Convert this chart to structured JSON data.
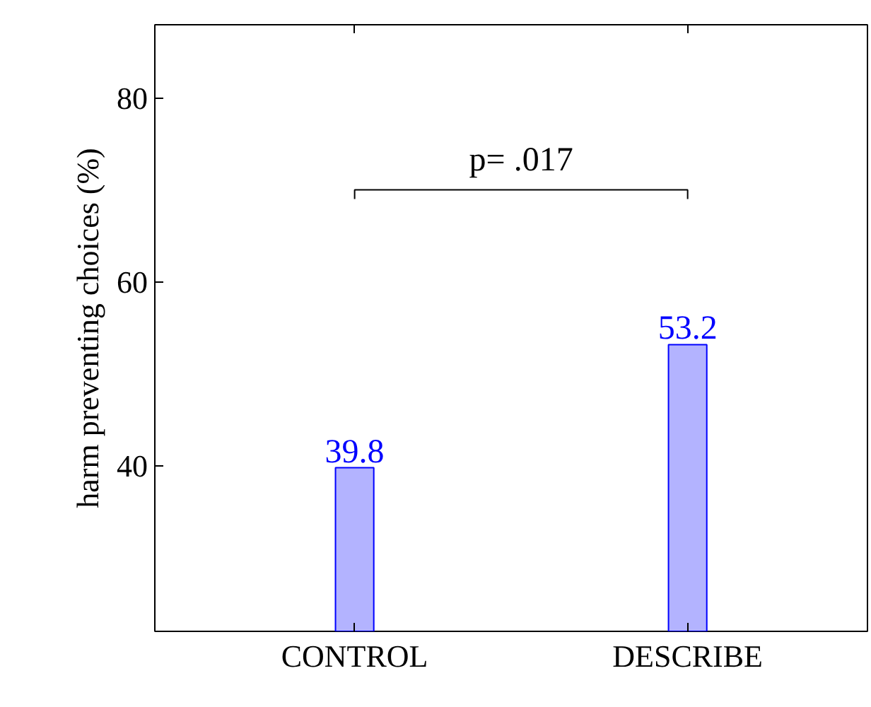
{
  "chart_data": {
    "type": "bar",
    "ylabel": "harm preventing choices (%)",
    "categories": [
      "CONTROL",
      "DESCRIBE"
    ],
    "series": [
      {
        "color": "#b3b3ff",
        "values": [
          39.8,
          53.2
        ]
      }
    ],
    "ylim": [
      22,
      88
    ],
    "yticks": [
      40,
      60,
      80
    ],
    "grid": false,
    "data_labels": true,
    "annotations": [
      "p= .017"
    ]
  }
}
